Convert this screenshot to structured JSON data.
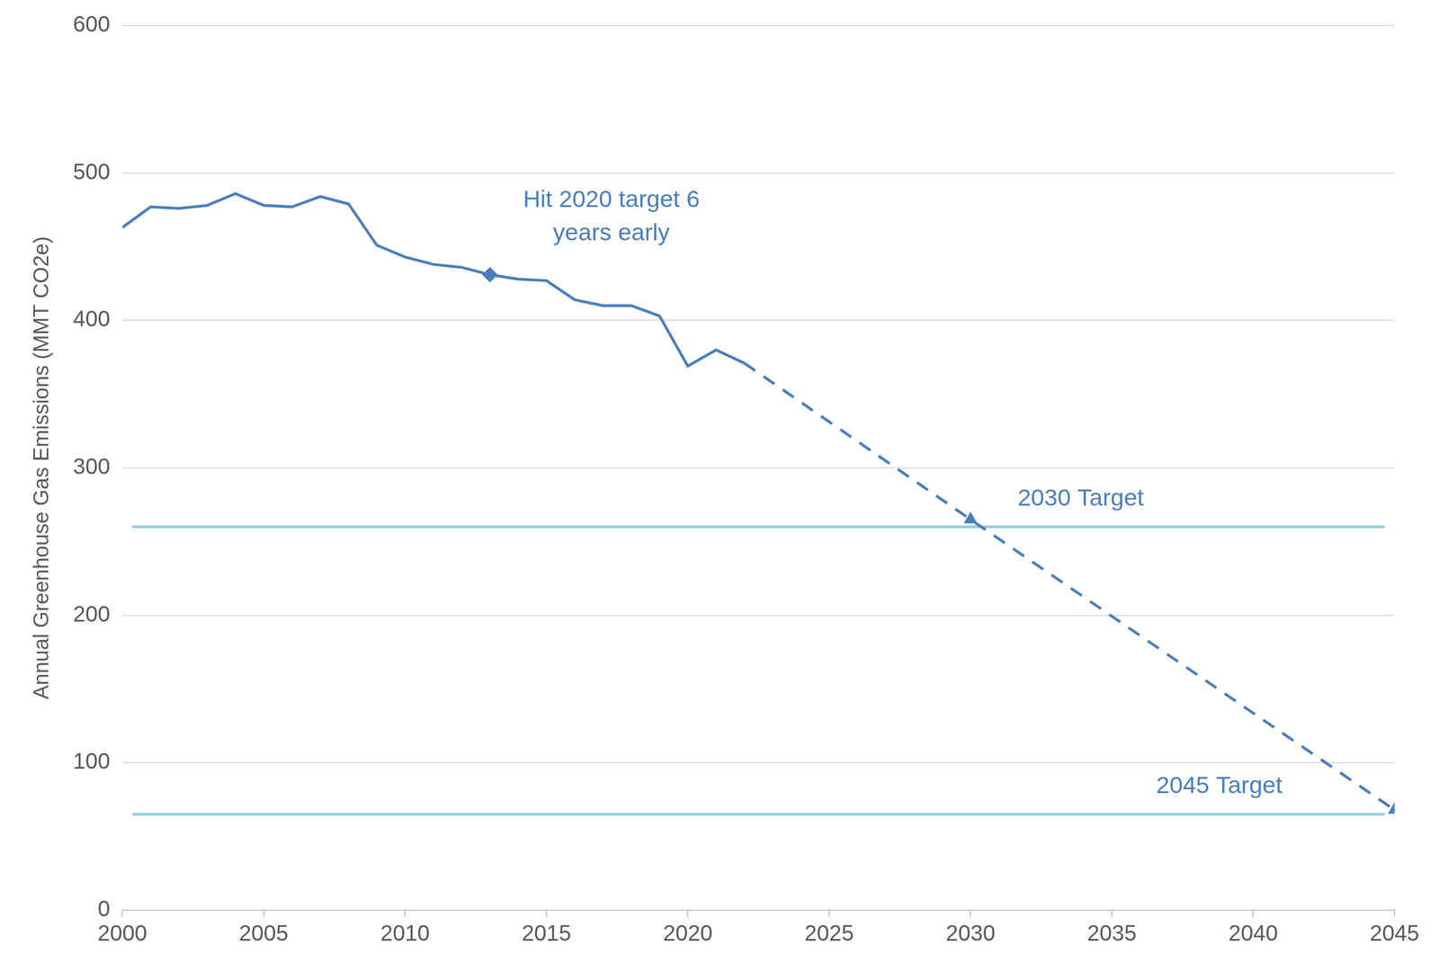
{
  "chart_data": {
    "type": "line",
    "y_label": "Annual Greenhouse Gas Emissions (MMT CO2e)",
    "xlim": [
      2000,
      2045
    ],
    "xticks": [
      2000,
      2005,
      2010,
      2015,
      2020,
      2025,
      2030,
      2035,
      2040,
      2045
    ],
    "ylim": [
      0,
      600
    ],
    "yticks": [
      0,
      100,
      200,
      300,
      400,
      500,
      600
    ],
    "grid": "y",
    "series": [
      {
        "x": [
          2000,
          2001,
          2002,
          2003,
          2004,
          2005,
          2006,
          2007,
          2008,
          2009,
          2010,
          2011,
          2012,
          2013,
          2014,
          2015,
          2016,
          2017,
          2018,
          2019,
          2020,
          2021,
          2022
        ],
        "values": [
          463,
          477,
          476,
          478,
          486,
          478,
          477,
          484,
          479,
          451,
          443,
          438,
          436,
          431,
          428,
          427,
          414,
          410,
          410,
          403,
          369,
          380,
          371
        ],
        "color": "#4a7ebb",
        "line_style": "solid",
        "marker": "none"
      },
      {
        "x": [
          2022,
          2030,
          2045
        ],
        "values": [
          371,
          265,
          68
        ],
        "color": "#4a7ebb",
        "line_style": "dashed",
        "marker": "none"
      },
      {
        "x": [
          2013
        ],
        "values": [
          431
        ],
        "color": "#4a7ebb",
        "marker": "diamond",
        "type": "scatter"
      },
      {
        "x": [
          2030,
          2045
        ],
        "values": [
          265,
          68
        ],
        "color": "#4a7ebb",
        "marker": "triangle",
        "type": "scatter"
      }
    ],
    "reference_lines": [
      {
        "value": 260,
        "color": "#92cddc"
      },
      {
        "value": 65,
        "color": "#92cddc"
      }
    ],
    "annotations": [
      {
        "text": [
          "Hit 2020 target 6",
          "years early"
        ],
        "x": 2017.3,
        "y": 470
      },
      {
        "text": [
          "2030 Target"
        ],
        "x": 2033.9,
        "y": 279
      },
      {
        "text": [
          "2045 Target"
        ],
        "x": 2038.8,
        "y": 84
      }
    ]
  }
}
